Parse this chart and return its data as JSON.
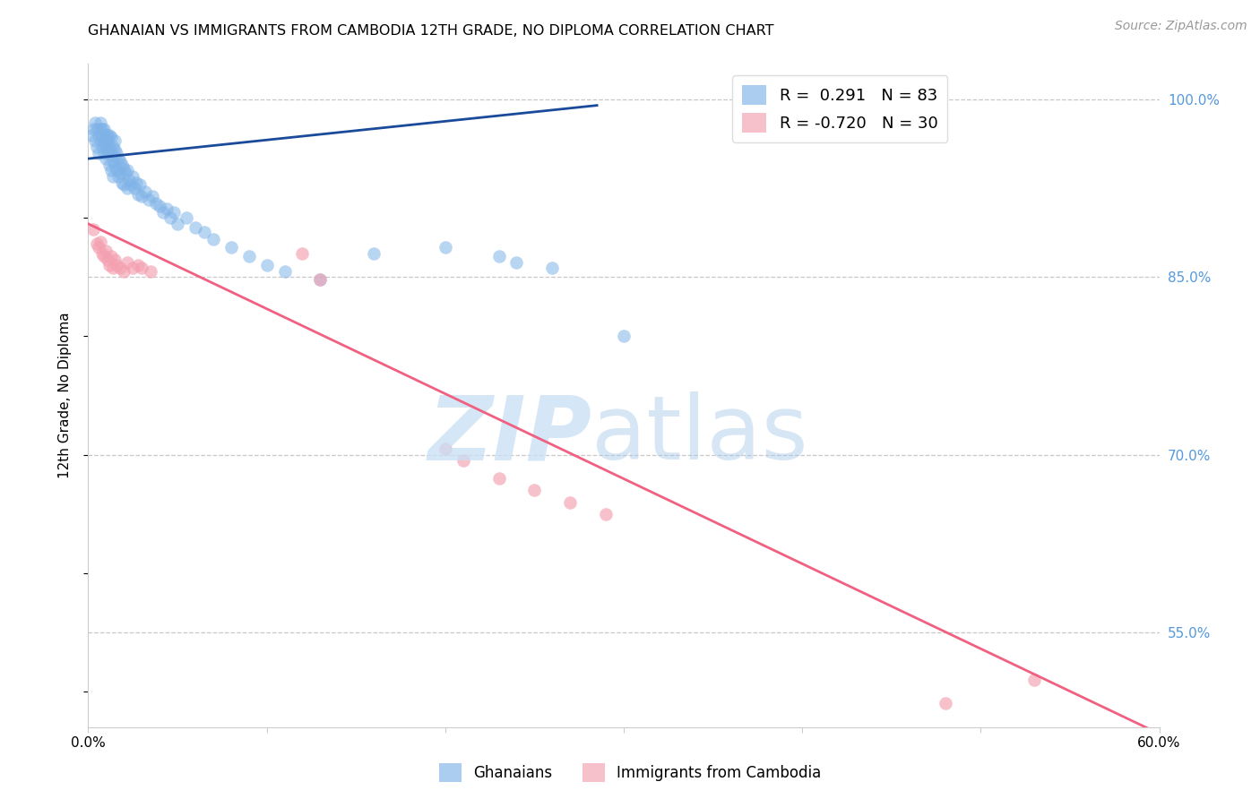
{
  "title": "GHANAIAN VS IMMIGRANTS FROM CAMBODIA 12TH GRADE, NO DIPLOMA CORRELATION CHART",
  "source": "Source: ZipAtlas.com",
  "ylabel": "12th Grade, No Diploma",
  "xlim": [
    0.0,
    0.6
  ],
  "ylim": [
    0.47,
    1.03
  ],
  "yticks_right": [
    1.0,
    0.85,
    0.7,
    0.55
  ],
  "ytick_right_labels": [
    "100.0%",
    "85.0%",
    "70.0%",
    "55.0%"
  ],
  "grid_color": "#c8c8c8",
  "background_color": "#ffffff",
  "blue_color": "#7fb3e8",
  "pink_color": "#f4a0b0",
  "blue_line_color": "#1a4a9a",
  "pink_line_color": "#f06080",
  "legend_R_blue": " 0.291",
  "legend_N_blue": "83",
  "legend_R_pink": "-0.720",
  "legend_N_pink": "30",
  "blue_scatter_x": [
    0.002,
    0.003,
    0.004,
    0.004,
    0.005,
    0.005,
    0.006,
    0.006,
    0.007,
    0.007,
    0.007,
    0.008,
    0.008,
    0.008,
    0.009,
    0.009,
    0.009,
    0.01,
    0.01,
    0.01,
    0.01,
    0.011,
    0.011,
    0.011,
    0.012,
    0.012,
    0.012,
    0.012,
    0.013,
    0.013,
    0.013,
    0.014,
    0.014,
    0.014,
    0.015,
    0.015,
    0.015,
    0.016,
    0.016,
    0.017,
    0.017,
    0.018,
    0.018,
    0.019,
    0.019,
    0.02,
    0.02,
    0.021,
    0.022,
    0.022,
    0.023,
    0.024,
    0.025,
    0.026,
    0.027,
    0.028,
    0.029,
    0.03,
    0.032,
    0.034,
    0.036,
    0.038,
    0.04,
    0.042,
    0.044,
    0.046,
    0.048,
    0.05,
    0.055,
    0.06,
    0.065,
    0.07,
    0.08,
    0.09,
    0.1,
    0.11,
    0.13,
    0.16,
    0.2,
    0.23,
    0.24,
    0.26,
    0.3
  ],
  "blue_scatter_y": [
    0.97,
    0.975,
    0.98,
    0.965,
    0.975,
    0.96,
    0.97,
    0.955,
    0.975,
    0.965,
    0.98,
    0.97,
    0.96,
    0.975,
    0.965,
    0.955,
    0.975,
    0.97,
    0.96,
    0.95,
    0.965,
    0.97,
    0.955,
    0.965,
    0.97,
    0.958,
    0.945,
    0.96,
    0.968,
    0.955,
    0.94,
    0.96,
    0.948,
    0.935,
    0.958,
    0.945,
    0.965,
    0.955,
    0.94,
    0.95,
    0.935,
    0.948,
    0.938,
    0.945,
    0.93,
    0.942,
    0.928,
    0.938,
    0.94,
    0.925,
    0.932,
    0.928,
    0.935,
    0.925,
    0.93,
    0.92,
    0.928,
    0.918,
    0.922,
    0.915,
    0.918,
    0.912,
    0.91,
    0.905,
    0.908,
    0.9,
    0.905,
    0.895,
    0.9,
    0.892,
    0.888,
    0.882,
    0.875,
    0.868,
    0.86,
    0.855,
    0.848,
    0.87,
    0.875,
    0.868,
    0.862,
    0.858,
    0.8
  ],
  "pink_scatter_x": [
    0.003,
    0.005,
    0.006,
    0.007,
    0.008,
    0.009,
    0.01,
    0.011,
    0.012,
    0.013,
    0.014,
    0.015,
    0.016,
    0.018,
    0.02,
    0.022,
    0.025,
    0.028,
    0.03,
    0.035,
    0.12,
    0.13,
    0.2,
    0.21,
    0.23,
    0.25,
    0.27,
    0.29,
    0.48,
    0.53
  ],
  "pink_scatter_y": [
    0.89,
    0.878,
    0.875,
    0.88,
    0.87,
    0.868,
    0.872,
    0.865,
    0.86,
    0.868,
    0.858,
    0.865,
    0.86,
    0.858,
    0.855,
    0.862,
    0.858,
    0.86,
    0.858,
    0.855,
    0.87,
    0.848,
    0.705,
    0.695,
    0.68,
    0.67,
    0.66,
    0.65,
    0.49,
    0.51
  ],
  "blue_trend_x": [
    0.0,
    0.285
  ],
  "blue_trend_y": [
    0.95,
    0.995
  ],
  "pink_trend_x": [
    0.0,
    0.595
  ],
  "pink_trend_y": [
    0.895,
    0.468
  ]
}
